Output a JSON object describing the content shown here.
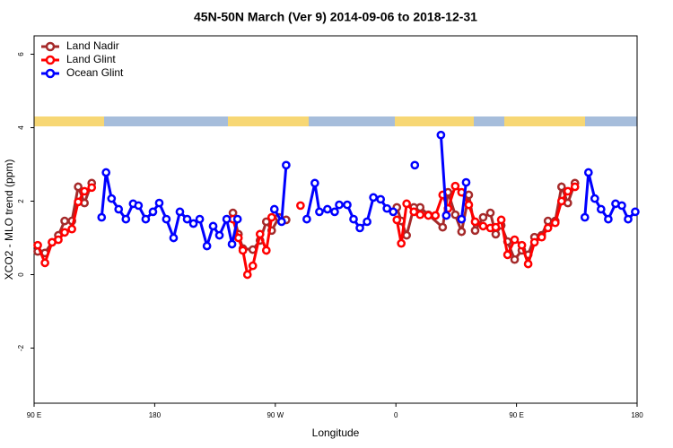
{
  "chart_data": {
    "type": "line",
    "title": "45N-50N March (Ver 9)   2014-09-06 to 2018-12-31",
    "x_label": "Longitude",
    "y_label": "XCO2 - MLO trend (ppm)",
    "xlim": [
      90,
      540
    ],
    "xticks": [
      {
        "value": 90,
        "label": "90 E"
      },
      180,
      {
        "value": 270,
        "label": "90 W"
      },
      {
        "value": 360,
        "label": "0"
      },
      {
        "value": 450,
        "label": "90 E"
      },
      {
        "value": 540,
        "label": "180"
      }
    ],
    "ylim": [
      -3.5,
      6.5
    ],
    "yticks": [
      -2,
      0,
      2,
      4,
      6
    ],
    "legend": "top-left",
    "series": [
      {
        "name": "Land Nadir",
        "color": "#a52a2a",
        "x": [
          92.7,
          98.1,
          103.4,
          108.1,
          112.8,
          118.2,
          122.9,
          127.6,
          133.0,
          null,
          238.4,
          242.5,
          245.8,
          253.2,
          258.6,
          263.3,
          267.3,
          272.7,
          278.1,
          null,
          360.7,
          364.0,
          368.0,
          373.4,
          378.1,
          384.2,
          394.9,
          398.9,
          404.3,
          409.0,
          414.4,
          419.1,
          425.1,
          430.5,
          434.5,
          438.6,
          443.3,
          448.6,
          454.0,
          458.7,
          463.4,
          468.8,
          473.5,
          478.9,
          483.6,
          488.3,
          493.6
        ],
        "values": [
          0.63,
          0.59,
          0.88,
          1.07,
          1.46,
          1.46,
          2.39,
          1.95,
          2.49,
          null,
          1.68,
          1.1,
          0.71,
          0.68,
          0.93,
          1.44,
          1.2,
          1.56,
          1.49,
          null,
          1.83,
          1.46,
          1.07,
          1.83,
          1.83,
          1.63,
          1.29,
          2.24,
          1.63,
          1.17,
          2.17,
          1.2,
          1.56,
          1.68,
          1.1,
          1.34,
          0.9,
          0.41,
          0.66,
          0.54,
          1.02,
          1.07,
          1.46,
          1.46,
          2.39,
          1.95,
          2.49
        ]
      },
      {
        "name": "Land Glint",
        "color": "#ff0000",
        "x": [
          92.7,
          98.1,
          103.4,
          108.1,
          112.8,
          118.2,
          122.9,
          127.6,
          133.0,
          null,
          238.4,
          242.5,
          245.8,
          249.2,
          253.2,
          258.6,
          263.3,
          267.3,
          null,
          288.8,
          null,
          360.7,
          364.0,
          368.0,
          373.4,
          378.1,
          384.2,
          389.5,
          394.9,
          398.9,
          404.3,
          409.0,
          414.4,
          419.1,
          425.1,
          430.5,
          434.5,
          438.6,
          443.3,
          448.6,
          454.0,
          458.7,
          463.4,
          468.8,
          473.5,
          478.9,
          483.6,
          488.3,
          493.6
        ],
        "values": [
          0.8,
          0.32,
          0.88,
          0.95,
          1.15,
          1.24,
          1.98,
          2.27,
          2.37,
          null,
          1.51,
          1.0,
          0.66,
          0.0,
          0.24,
          1.1,
          0.66,
          1.56,
          null,
          1.88,
          null,
          1.49,
          0.85,
          1.93,
          1.71,
          1.63,
          1.61,
          1.61,
          2.17,
          1.8,
          2.41,
          2.24,
          1.9,
          1.44,
          1.32,
          1.27,
          1.29,
          1.49,
          0.54,
          0.95,
          0.8,
          0.29,
          0.88,
          1.02,
          1.27,
          1.41,
          2.0,
          2.27,
          2.39
        ]
      },
      {
        "name": "Ocean Glint",
        "color": "#0000ff",
        "x": [
          140.4,
          143.7,
          147.8,
          153.1,
          158.5,
          163.9,
          167.9,
          173.3,
          178.7,
          183.4,
          188.7,
          194.1,
          198.8,
          204.2,
          208.9,
          213.6,
          219.0,
          223.6,
          228.3,
          233.7,
          237.7,
          241.8,
          null,
          269.3,
          274.7,
          278.1,
          null,
          293.5,
          299.5,
          302.9,
          308.9,
          314.3,
          317.7,
          323.7,
          328.4,
          333.1,
          338.5,
          343.2,
          348.6,
          353.3,
          358.0,
          null,
          374.1,
          null,
          393.6,
          397.6,
          null,
          409.0,
          412.4,
          null,
          501.0,
          503.7,
          508.4,
          513.1,
          518.5,
          523.9,
          528.6,
          533.3,
          538.6
        ],
        "values": [
          1.56,
          2.78,
          2.07,
          1.78,
          1.51,
          1.93,
          1.88,
          1.51,
          1.71,
          1.95,
          1.51,
          1.0,
          1.71,
          1.51,
          1.39,
          1.51,
          0.78,
          1.32,
          1.07,
          1.51,
          0.83,
          1.51,
          null,
          1.78,
          1.44,
          2.98,
          null,
          1.51,
          2.49,
          1.71,
          1.78,
          1.71,
          1.9,
          1.9,
          1.51,
          1.27,
          1.44,
          2.1,
          2.05,
          1.8,
          1.71,
          null,
          2.98,
          null,
          3.8,
          1.61,
          null,
          1.51,
          2.51,
          null,
          1.56,
          2.78,
          2.07,
          1.78,
          1.51,
          1.93,
          1.88,
          1.51,
          1.71
        ]
      }
    ]
  }
}
